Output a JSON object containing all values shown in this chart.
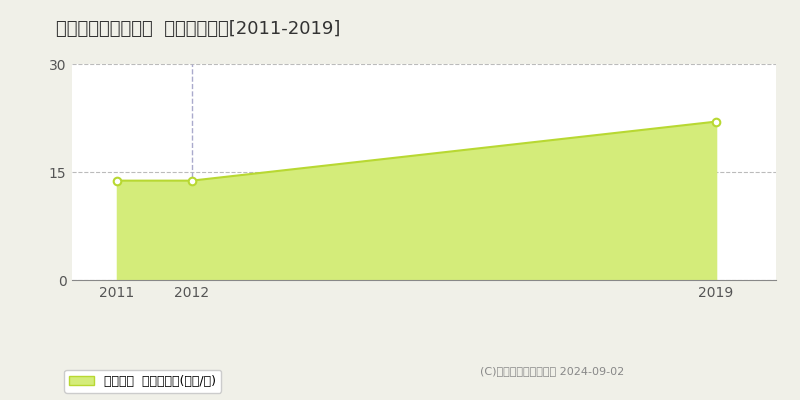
{
  "title": "大和高田市礒野北町  土地価格推移[2011-2019]",
  "x_values": [
    2011,
    2012,
    2019
  ],
  "y_values": [
    13.8,
    13.8,
    22.0
  ],
  "xlim": [
    2010.4,
    2019.8
  ],
  "ylim": [
    0,
    30
  ],
  "yticks": [
    0,
    15,
    30
  ],
  "xticks": [
    2011,
    2012,
    2019
  ],
  "line_color": "#b8d832",
  "fill_color": "#d4ec7a",
  "fill_alpha": 1.0,
  "marker_facecolor": "white",
  "marker_edgecolor": "#b8d832",
  "grid_color": "#bbbbbb",
  "background_color": "#f0f0e8",
  "plot_bg_color": "#ffffff",
  "legend_label": "土地価格  平均坪単価(万円/坪)",
  "copyright_text": "(C)土地価格ドットコム 2024-09-02",
  "vline_x": 2012,
  "vline_color": "#aaaacc",
  "title_fontsize": 13,
  "tick_fontsize": 10,
  "legend_fontsize": 9,
  "copyright_fontsize": 8
}
